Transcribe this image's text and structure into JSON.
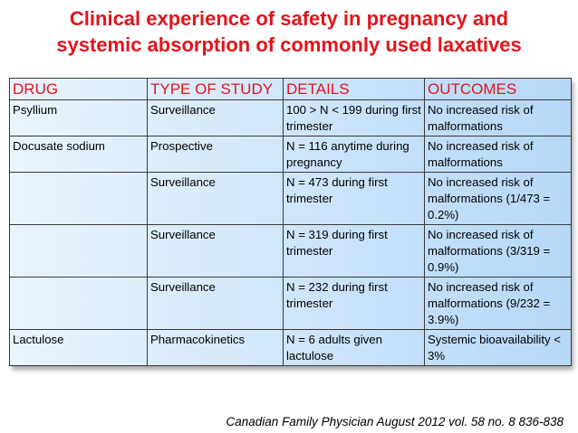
{
  "slide": {
    "title_line1": "Clinical experience of safety in pregnancy and",
    "title_line2": "systemic absorption of commonly used laxatives",
    "citation": "Canadian Family Physician August 2012 vol. 58 no. 8 836-838"
  },
  "table": {
    "headers": [
      "DRUG",
      "TYPE OF STUDY",
      "DETAILS",
      "OUTCOMES"
    ],
    "rows": [
      [
        "Psyllium",
        "Surveillance",
        "100 > N < 199 during first trimester",
        "No increased risk of malformations"
      ],
      [
        "Docusate sodium",
        "Prospective",
        "N = 116 anytime during pregnancy",
        "No increased risk of malformations"
      ],
      [
        "",
        "Surveillance",
        "N = 473 during first trimester",
        "No increased risk of malformations (1/473 = 0.2%)"
      ],
      [
        "",
        "Surveillance",
        "N = 319 during first trimester",
        "No increased risk of malformations (3/319 = 0.9%)"
      ],
      [
        "",
        "Surveillance",
        "N = 232 during first trimester",
        "No increased risk of malformations (9/232 = 3.9%)"
      ],
      [
        "Lactulose",
        "Pharmacokinetics",
        "N = 6 adults given lactulose",
        "Systemic bioavailability < 3%"
      ]
    ]
  },
  "colors": {
    "title": "#e3141c",
    "header_text": "#e3141c",
    "cell_fill_light": "#eaf4fd",
    "cell_fill_dark": "#b6d8f7"
  }
}
